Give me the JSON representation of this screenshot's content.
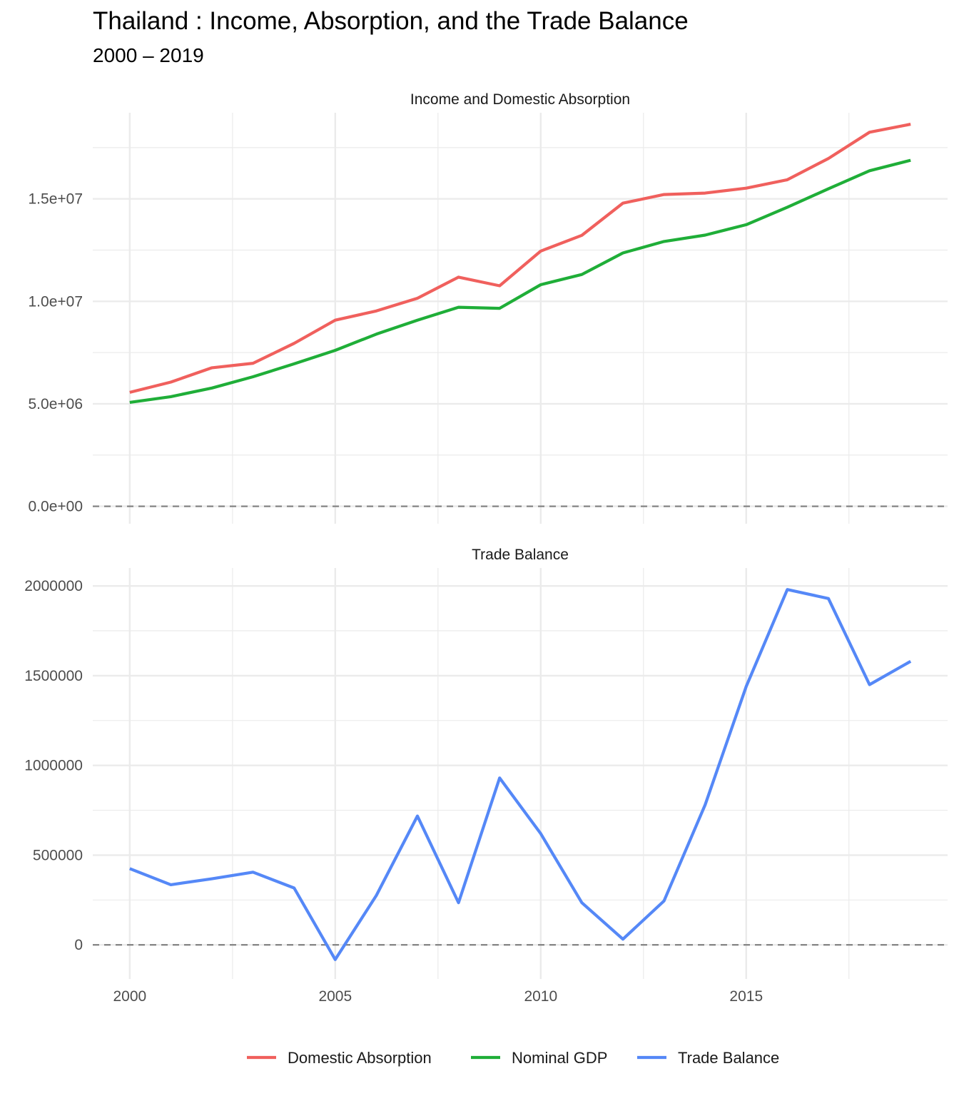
{
  "title": "Thailand : Income, Absorption, and the Trade Balance",
  "subtitle": "2000 – 2019",
  "colors": {
    "domestic_absorption": "#F0605D",
    "nominal_gdp": "#1FAE38",
    "trade_balance": "#5588F7",
    "grid": "#EBEBEB",
    "zero_line": "#7F7F7F"
  },
  "chart_data": [
    {
      "type": "line",
      "title": "Income and Domestic Absorption",
      "x": [
        2000,
        2001,
        2002,
        2003,
        2004,
        2005,
        2006,
        2007,
        2008,
        2009,
        2010,
        2011,
        2012,
        2013,
        2014,
        2015,
        2016,
        2017,
        2018,
        2019
      ],
      "xlim": [
        1999.1,
        2019.9
      ],
      "ylim": [
        -850000,
        19200000
      ],
      "y_ticks": [
        0,
        5000000,
        10000000,
        15000000
      ],
      "y_tick_labels": [
        "0.0e+00",
        "5.0e+06",
        "1.0e+07",
        "1.5e+07"
      ],
      "hline_dashed": 0,
      "grid": true,
      "series": [
        {
          "name": "Domestic Absorption",
          "key": "domestic_absorption",
          "values": [
            5560000,
            6060000,
            6760000,
            6980000,
            7950000,
            9080000,
            9530000,
            10150000,
            11180000,
            10760000,
            12450000,
            13220000,
            14790000,
            15210000,
            15280000,
            15520000,
            15930000,
            16970000,
            18250000,
            18640000
          ]
        },
        {
          "name": "Nominal GDP",
          "key": "nominal_gdp",
          "values": [
            5070000,
            5350000,
            5770000,
            6320000,
            6950000,
            7610000,
            8400000,
            9080000,
            9710000,
            9660000,
            10810000,
            11310000,
            12360000,
            12920000,
            13230000,
            13740000,
            14590000,
            15490000,
            16370000,
            16880000
          ]
        }
      ]
    },
    {
      "type": "line",
      "title": "Trade Balance",
      "x": [
        2000,
        2001,
        2002,
        2003,
        2004,
        2005,
        2006,
        2007,
        2008,
        2009,
        2010,
        2011,
        2012,
        2013,
        2014,
        2015,
        2016,
        2017,
        2018,
        2019
      ],
      "xlim": [
        1999.1,
        2019.9
      ],
      "ylim": [
        -190000,
        2100000
      ],
      "x_ticks": [
        2000,
        2005,
        2010,
        2015
      ],
      "x_tick_labels": [
        "2000",
        "2005",
        "2010",
        "2015"
      ],
      "y_ticks": [
        0,
        500000,
        1000000,
        1500000,
        2000000
      ],
      "y_tick_labels": [
        "0",
        "500000",
        "1000000",
        "1500000",
        "2000000"
      ],
      "hline_dashed": 0,
      "grid": true,
      "series": [
        {
          "name": "Trade Balance",
          "key": "trade_balance",
          "values": [
            425000,
            335000,
            368000,
            405000,
            317000,
            -82000,
            275000,
            718000,
            235000,
            930000,
            620000,
            235000,
            32000,
            245000,
            780000,
            1440000,
            1980000,
            1930000,
            1450000,
            1580000
          ]
        }
      ]
    }
  ],
  "legend": {
    "position": "bottom",
    "items": [
      {
        "label": "Domestic Absorption",
        "key": "domestic_absorption"
      },
      {
        "label": "Nominal GDP",
        "key": "nominal_gdp"
      },
      {
        "label": "Trade Balance",
        "key": "trade_balance"
      }
    ]
  }
}
